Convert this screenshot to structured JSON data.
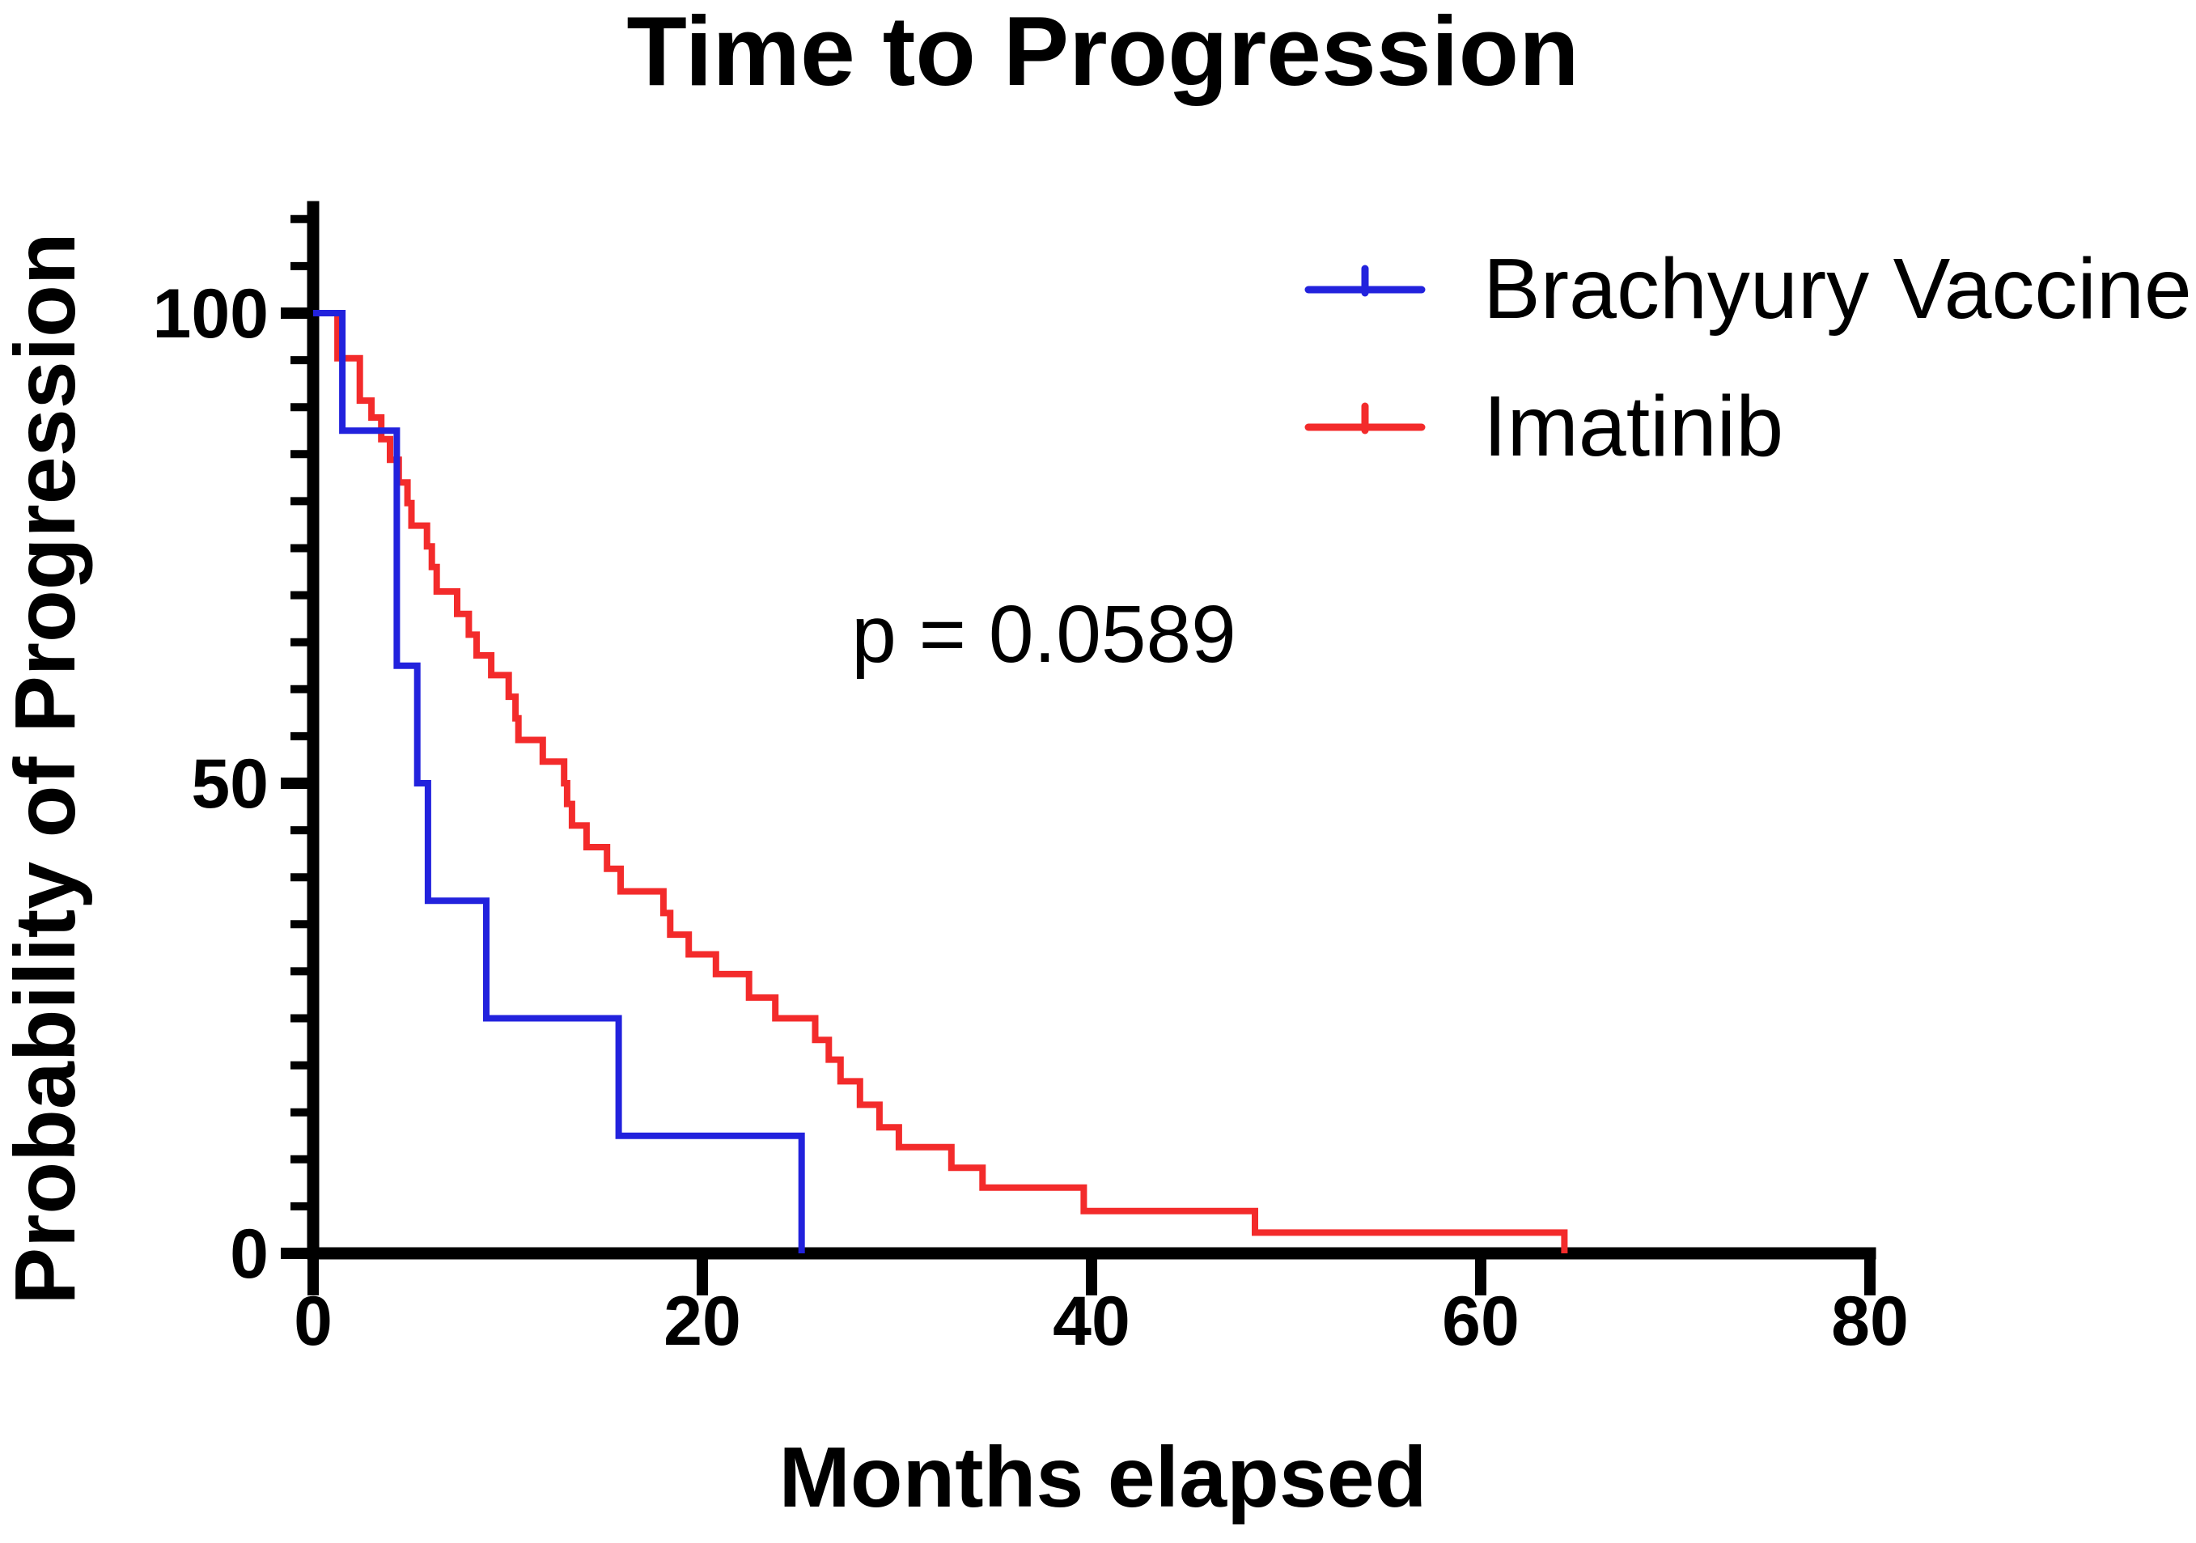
{
  "figure": {
    "background": "#ffffff",
    "text_color": "#000000",
    "axis_color": "#000000"
  },
  "p_value_text": "p = 0.0589",
  "chart_data": {
    "type": "line",
    "subtype": "kaplan-meier-step",
    "title": "Time to Progression",
    "xlabel": "Months elapsed",
    "ylabel": "Probability of Progression",
    "annotation": "p = 0.0589",
    "xlim": [
      0,
      80
    ],
    "ylim": [
      0,
      110
    ],
    "x_ticks": [
      0,
      20,
      40,
      60,
      80
    ],
    "y_ticks": [
      0,
      50,
      100
    ],
    "y_minor_tick_step": 5,
    "grid": false,
    "legend_position": "top-right",
    "series": [
      {
        "name": "Imatinib",
        "color": "#f32b2b",
        "start": [
          0,
          100
        ],
        "steps": [
          [
            1.25,
            95.2
          ],
          [
            2.4,
            90.7
          ],
          [
            3.0,
            88.9
          ],
          [
            3.5,
            86.6
          ],
          [
            3.95,
            84.4
          ],
          [
            4.4,
            82.0
          ],
          [
            4.85,
            79.8
          ],
          [
            5.05,
            77.4
          ],
          [
            5.85,
            75.2
          ],
          [
            6.1,
            73.0
          ],
          [
            6.35,
            70.4
          ],
          [
            7.4,
            68.0
          ],
          [
            8.0,
            65.8
          ],
          [
            8.4,
            63.6
          ],
          [
            9.15,
            61.5
          ],
          [
            10.05,
            59.2
          ],
          [
            10.4,
            56.9
          ],
          [
            10.55,
            54.6
          ],
          [
            11.8,
            52.3
          ],
          [
            12.9,
            50.0
          ],
          [
            13.05,
            47.8
          ],
          [
            13.3,
            45.5
          ],
          [
            14.05,
            43.2
          ],
          [
            15.1,
            40.9
          ],
          [
            15.8,
            38.5
          ],
          [
            18.0,
            36.2
          ],
          [
            18.35,
            33.9
          ],
          [
            19.3,
            31.8
          ],
          [
            20.7,
            29.7
          ],
          [
            22.4,
            27.2
          ],
          [
            23.75,
            25.0
          ],
          [
            25.8,
            22.7
          ],
          [
            26.5,
            20.6
          ],
          [
            27.1,
            18.3
          ],
          [
            28.1,
            15.8
          ],
          [
            29.1,
            13.4
          ],
          [
            30.1,
            11.3
          ],
          [
            32.8,
            9.1
          ],
          [
            34.4,
            7.0
          ],
          [
            39.6,
            4.5
          ],
          [
            48.4,
            2.2
          ],
          [
            64.3,
            0
          ]
        ]
      },
      {
        "name": "Brachyury Vaccine",
        "color": "#2222dd",
        "start": [
          0,
          100
        ],
        "steps": [
          [
            1.5,
            87.5
          ],
          [
            4.3,
            62.5
          ],
          [
            5.35,
            50
          ],
          [
            5.9,
            37.5
          ],
          [
            8.9,
            25
          ],
          [
            15.7,
            12.5
          ],
          [
            25.1,
            0
          ]
        ]
      }
    ]
  },
  "legend": {
    "order": [
      "Brachyury Vaccine",
      "Imatinib"
    ],
    "colors": [
      "#2222dd",
      "#f32b2b"
    ]
  }
}
